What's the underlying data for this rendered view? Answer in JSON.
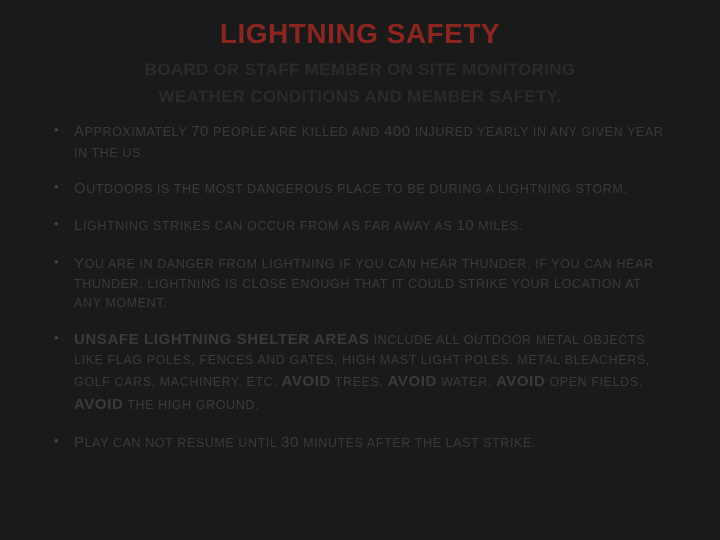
{
  "title_color": "#8a2520",
  "body_text_color": "#3a3a3a",
  "subtitle_color": "#2a2a2a",
  "background_color": "#1a1a1a",
  "title": "LIGHTNING SAFETY",
  "subtitle_line1": "BOARD OR STAFF MEMBER ON SITE MONITORING",
  "subtitle_line2": "WEATHER CONDITIONS AND MEMBER SAFETY.",
  "bullets": {
    "b1_lead": "A",
    "b1_a": "PPROXIMATELY ",
    "b1_num1": "70",
    "b1_b": " PEOPLE ARE KILLED AND ",
    "b1_num2": "400",
    "b1_c": " INJURED YEARLY IN ANY GIVEN YEAR IN THE ",
    "b1_d": "US.",
    "b2_lead": "O",
    "b2_a": "UTDOORS IS THE MOST DANGEROUS PLACE TO BE DURING A LIGHTNING STORM",
    "b2_b": ".",
    "b3_lead": "L",
    "b3_a": "IGHTNING STRIKES CAN OCCUR FROM AS FAR AWAY AS ",
    "b3_num": "10",
    "b3_b": " MILES",
    "b3_c": ".",
    "b4_lead": "Y",
    "b4_a": "OU ARE IN DANGER FROM LIGHTNING IF YOU CAN HEAR THUNDER",
    "b4_mid": ". I",
    "b4_b": "F YOU CAN HEAR THUNDER",
    "b4_c": ", ",
    "b4_d": "LIGHTNING IS CLOSE ENOUGH THAT IT COULD STRIKE YOUR LOCATION AT ANY MOMENT",
    "b4_e": ".",
    "b5_bold1": "UNSAFE LIGHTNING SHELTER AREAS",
    "b5_a": " INCLUDE ALL OUTDOOR METAL OBJECTS LIKE FLAG POLES",
    "b5_b": ", ",
    "b5_c": "FENCES AND GATES",
    "b5_d": ", ",
    "b5_e": "HIGH MAST LIGHT POLES",
    "b5_f": ", ",
    "b5_g": "METAL BLEACHERS",
    "b5_h": ", ",
    "b5_i": "GOLF CARS",
    "b5_j": ", ",
    "b5_k": "MACHINERY",
    "b5_l": ", ",
    "b5_m": "ETC",
    "b5_n": ". ",
    "b5_bold2": "AVOID",
    "b5_o": " TREES",
    "b5_p": ". ",
    "b5_bold3": "AVOID",
    "b5_q": " WATER",
    "b5_r": ". ",
    "b5_bold4": "AVOID",
    "b5_s": " OPEN FIELDS",
    "b5_t": ". ",
    "b5_bold5": "AVOID",
    "b5_u": " THE HIGH GROUND",
    "b5_v": ".",
    "b6_lead": "P",
    "b6_a": "LAY CAN NOT RESUME UNTIL ",
    "b6_num": "30",
    "b6_b": " MINUTES AFTER THE LAST STRIKE",
    "b6_c": "."
  }
}
